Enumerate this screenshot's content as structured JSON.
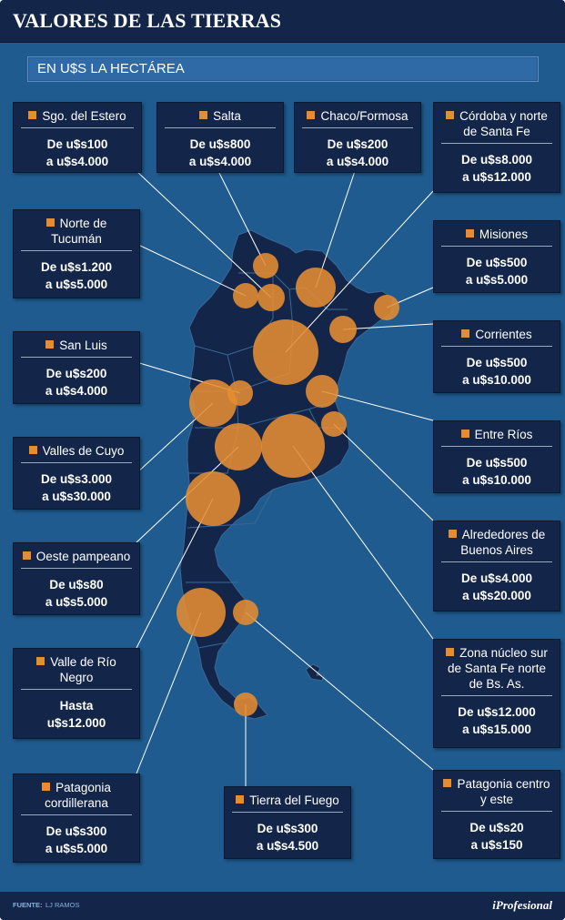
{
  "header": {
    "title": "VALORES DE LAS TIERRAS",
    "subtitle": "EN U$S LA HECTÁREA"
  },
  "colors": {
    "background": "#1f5b8f",
    "panel": "#13264a",
    "bubble": "#e58d32",
    "land": "#13264a"
  },
  "regions": [
    {
      "name": "Sgo. del Estero",
      "line1": "De u$s100",
      "line2": "a u$s4.000"
    },
    {
      "name": "Salta",
      "line1": "De u$s800",
      "line2": "a u$s4.000"
    },
    {
      "name": "Chaco/Formosa",
      "line1": "De u$s200",
      "line2": "a u$s4.000"
    },
    {
      "name": "Córdoba y norte de Santa Fe",
      "line1": "De u$s8.000",
      "line2": "a u$s12.000"
    },
    {
      "name": "Norte de Tucumán",
      "line1": "De u$s1.200",
      "line2": "a u$s5.000"
    },
    {
      "name": "Misiones",
      "line1": "De u$s500",
      "line2": "a u$s5.000"
    },
    {
      "name": "San Luis",
      "line1": "De u$s200",
      "line2": "a u$s4.000"
    },
    {
      "name": "Corrientes",
      "line1": "De u$s500",
      "line2": "a u$s10.000"
    },
    {
      "name": "Entre Ríos",
      "line1": "De u$s500",
      "line2": "a u$s10.000"
    },
    {
      "name": "Valles de Cuyo",
      "line1": "De u$s3.000",
      "line2": "a u$s30.000"
    },
    {
      "name": "Alrededores de Buenos Aires",
      "line1": "De u$s4.000",
      "line2": "a u$s20.000"
    },
    {
      "name": "Oeste pampeano",
      "line1": "De u$s80",
      "line2": "a u$s5.000"
    },
    {
      "name": "Valle de Río Negro",
      "line1": "Hasta",
      "line2": "u$s12.000"
    },
    {
      "name": "Zona núcleo sur de Santa Fe norte de Bs. As.",
      "line1": "De u$s12.000",
      "line2": "a u$s15.000"
    },
    {
      "name": "Patagonia cordillerana",
      "line1": "De u$s300",
      "line2": "a u$s5.000"
    },
    {
      "name": "Tierra del Fuego",
      "line1": "De u$s300",
      "line2": "a u$s4.500"
    },
    {
      "name": "Patagonia centro y este",
      "line1": "De u$s20",
      "line2": "a u$s150"
    }
  ],
  "footer": {
    "source_label": "FUENTE:",
    "source": "LJ RAMOS",
    "brand": "iProfesional"
  }
}
